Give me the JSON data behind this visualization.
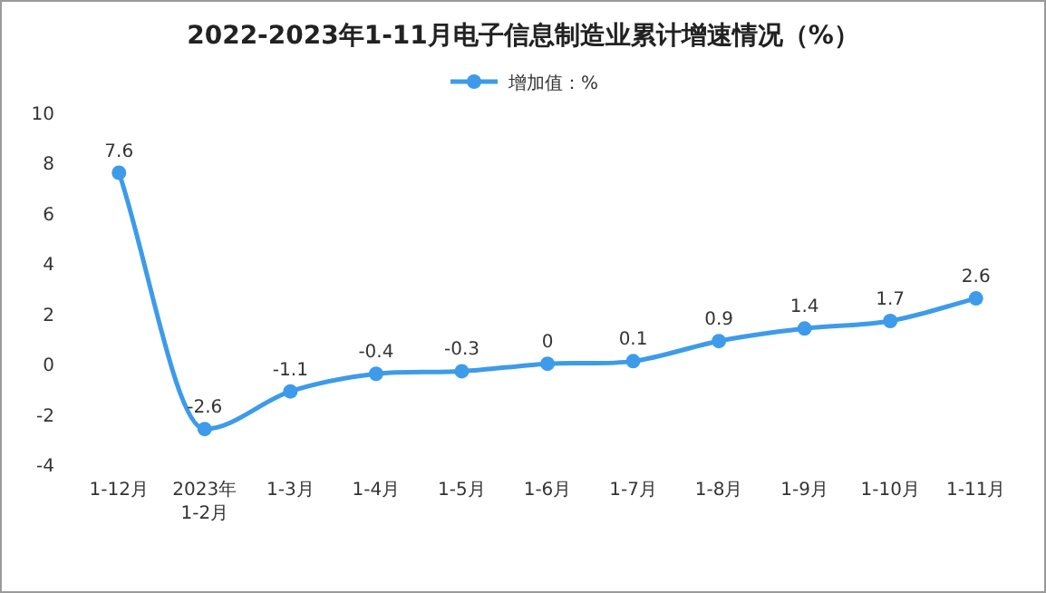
{
  "chart_data": {
    "type": "line",
    "title": "2022-2023年1-11月电子信息制造业累计增速情况（%）",
    "categories": [
      "1-12月",
      "2023年\n1-2月",
      "1-3月",
      "1-4月",
      "1-5月",
      "1-6月",
      "1-7月",
      "1-8月",
      "1-9月",
      "1-10月",
      "1-11月"
    ],
    "series": [
      {
        "name": "增加值：%",
        "color": "#3d9be9",
        "values": [
          7.6,
          -2.6,
          -1.1,
          -0.4,
          -0.3,
          0,
          0.1,
          0.9,
          1.4,
          1.7,
          2.6
        ]
      }
    ],
    "ylim": [
      -4,
      10
    ],
    "yticks": [
      -4,
      -2,
      0,
      2,
      4,
      6,
      8,
      10
    ],
    "data_labels": true,
    "legend": "top",
    "marker": "circle"
  }
}
